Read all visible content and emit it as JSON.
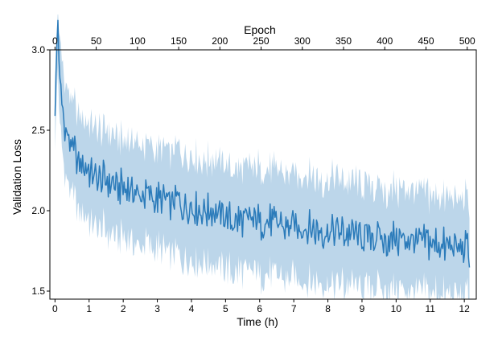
{
  "chart_data": {
    "type": "line",
    "title": "",
    "xlabel": "Time (h)",
    "x2label": "Epoch",
    "ylabel": "Validation Loss",
    "xlim": [
      -0.15,
      12.35
    ],
    "x2lim": [
      -6.2,
      511
    ],
    "ylim": [
      1.45,
      3.0
    ],
    "x_ticks": [
      "0",
      "1",
      "2",
      "3",
      "4",
      "5",
      "6",
      "7",
      "8",
      "9",
      "10",
      "11",
      "12"
    ],
    "x2_ticks": [
      "0",
      "50",
      "100",
      "150",
      "200",
      "250",
      "300",
      "350",
      "400",
      "450",
      "500"
    ],
    "y_ticks": [
      "1.5",
      "2.0",
      "2.5",
      "3.0"
    ],
    "grid": false,
    "line_color": "#2b7bba",
    "band_color": "#a6c8e3",
    "series": [
      {
        "x": [
          0,
          0.08,
          0.15,
          0.25,
          0.4,
          0.6,
          0.8,
          1.0,
          1.3,
          1.6,
          2.0,
          2.5,
          3.0,
          3.5,
          4.0,
          4.5,
          5.0,
          5.5,
          6.0,
          6.5,
          7.0,
          7.5,
          8.0,
          8.5,
          9.0,
          9.5,
          10.0,
          10.5,
          11.0,
          11.5,
          12.0,
          12.15
        ],
        "mean": [
          2.65,
          3.2,
          2.75,
          2.6,
          2.45,
          2.35,
          2.28,
          2.24,
          2.2,
          2.17,
          2.14,
          2.1,
          2.07,
          2.05,
          2.02,
          1.99,
          1.96,
          1.94,
          1.93,
          1.92,
          1.91,
          1.89,
          1.87,
          1.86,
          1.84,
          1.83,
          1.82,
          1.81,
          1.8,
          1.78,
          1.76,
          1.75
        ],
        "lower": [
          2.45,
          2.95,
          2.5,
          2.35,
          2.2,
          2.08,
          2.0,
          1.95,
          1.92,
          1.88,
          1.85,
          1.81,
          1.78,
          1.75,
          1.72,
          1.69,
          1.66,
          1.64,
          1.63,
          1.62,
          1.61,
          1.59,
          1.57,
          1.56,
          1.55,
          1.54,
          1.53,
          1.52,
          1.51,
          1.5,
          1.49,
          1.48
        ],
        "upper": [
          2.85,
          3.2,
          3.0,
          2.85,
          2.7,
          2.62,
          2.55,
          2.52,
          2.48,
          2.45,
          2.42,
          2.39,
          2.36,
          2.34,
          2.31,
          2.28,
          2.26,
          2.24,
          2.23,
          2.22,
          2.21,
          2.19,
          2.17,
          2.16,
          2.14,
          2.12,
          2.11,
          2.1,
          2.08,
          2.06,
          2.04,
          2.02
        ]
      }
    ]
  }
}
